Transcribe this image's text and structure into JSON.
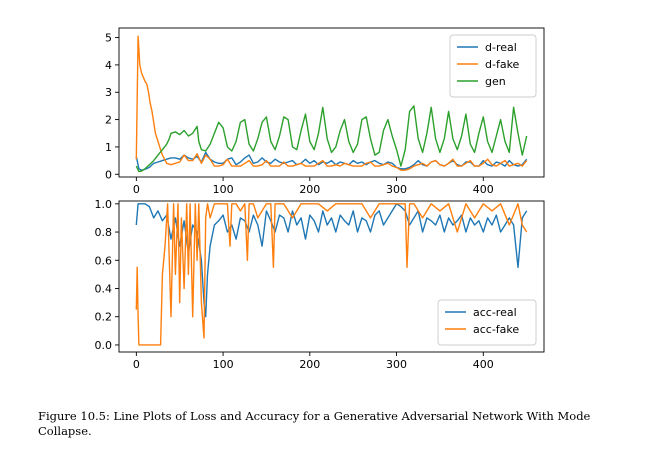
{
  "caption": "Figure 10.5: Line Plots of Loss and Accuracy for a Generative Adversarial Network With Mode Collapse.",
  "chart_data": [
    {
      "type": "line",
      "xlim": [
        -20,
        470
      ],
      "ylim": [
        -0.1,
        5.35
      ],
      "xticks": [
        0,
        100,
        200,
        300,
        400
      ],
      "xtick_labels": [
        "0",
        "100",
        "200",
        "300",
        "400"
      ],
      "yticks": [
        0,
        1,
        2,
        3,
        4,
        5
      ],
      "ytick_labels": [
        "0",
        "1",
        "2",
        "3",
        "4",
        "5"
      ],
      "legend_position": "upper-right",
      "grid": false,
      "series": [
        {
          "name": "d-real",
          "color": "#1f77b4",
          "x": [
            0,
            3,
            6,
            10,
            15,
            20,
            25,
            30,
            35,
            40,
            45,
            50,
            55,
            60,
            65,
            70,
            75,
            80,
            85,
            90,
            95,
            100,
            105,
            110,
            115,
            120,
            125,
            130,
            135,
            140,
            145,
            150,
            155,
            160,
            165,
            170,
            175,
            180,
            185,
            190,
            195,
            200,
            205,
            210,
            215,
            220,
            225,
            230,
            235,
            240,
            245,
            250,
            255,
            260,
            265,
            270,
            275,
            280,
            285,
            290,
            295,
            300,
            305,
            310,
            315,
            320,
            325,
            330,
            335,
            340,
            345,
            350,
            355,
            360,
            365,
            370,
            375,
            380,
            385,
            390,
            395,
            400,
            405,
            410,
            415,
            420,
            425,
            430,
            435,
            440,
            445,
            450
          ],
          "y": [
            0.65,
            0.2,
            0.15,
            0.18,
            0.25,
            0.4,
            0.45,
            0.5,
            0.55,
            0.6,
            0.6,
            0.55,
            0.7,
            0.6,
            0.55,
            0.65,
            0.45,
            0.8,
            0.55,
            0.45,
            0.4,
            0.4,
            0.55,
            0.6,
            0.35,
            0.45,
            0.6,
            0.7,
            0.4,
            0.45,
            0.6,
            0.45,
            0.4,
            0.55,
            0.45,
            0.4,
            0.45,
            0.5,
            0.35,
            0.4,
            0.55,
            0.4,
            0.5,
            0.35,
            0.45,
            0.4,
            0.5,
            0.35,
            0.45,
            0.4,
            0.35,
            0.5,
            0.4,
            0.45,
            0.35,
            0.45,
            0.5,
            0.4,
            0.35,
            0.45,
            0.4,
            0.25,
            0.2,
            0.2,
            0.25,
            0.35,
            0.5,
            0.35,
            0.3,
            0.45,
            0.5,
            0.35,
            0.3,
            0.4,
            0.5,
            0.35,
            0.3,
            0.45,
            0.45,
            0.3,
            0.3,
            0.5,
            0.35,
            0.3,
            0.45,
            0.4,
            0.3,
            0.5,
            0.35,
            0.3,
            0.35,
            0.55
          ]
        },
        {
          "name": "d-fake",
          "color": "#ff7f0e",
          "x": [
            0,
            2,
            4,
            6,
            8,
            10,
            12,
            14,
            16,
            18,
            20,
            22,
            25,
            28,
            30,
            35,
            40,
            45,
            50,
            55,
            60,
            65,
            70,
            75,
            80,
            85,
            90,
            95,
            100,
            105,
            110,
            115,
            120,
            125,
            130,
            135,
            140,
            145,
            150,
            155,
            160,
            165,
            170,
            175,
            180,
            185,
            190,
            195,
            200,
            205,
            210,
            215,
            220,
            225,
            230,
            235,
            240,
            245,
            250,
            255,
            260,
            265,
            270,
            275,
            280,
            285,
            290,
            295,
            300,
            305,
            310,
            315,
            320,
            325,
            330,
            335,
            340,
            345,
            350,
            355,
            360,
            365,
            370,
            375,
            380,
            385,
            390,
            395,
            400,
            405,
            410,
            415,
            420,
            425,
            430,
            435,
            440,
            445,
            450
          ],
          "y": [
            0.55,
            5.05,
            4.0,
            3.7,
            3.55,
            3.4,
            3.3,
            3.0,
            2.6,
            2.3,
            1.9,
            1.5,
            1.2,
            0.9,
            0.7,
            0.4,
            0.35,
            0.4,
            0.45,
            0.7,
            0.5,
            0.5,
            0.75,
            0.4,
            0.7,
            0.55,
            0.3,
            0.3,
            0.35,
            0.55,
            0.3,
            0.3,
            0.3,
            0.4,
            0.5,
            0.3,
            0.3,
            0.35,
            0.5,
            0.3,
            0.3,
            0.3,
            0.45,
            0.3,
            0.3,
            0.35,
            0.4,
            0.3,
            0.3,
            0.3,
            0.4,
            0.5,
            0.3,
            0.3,
            0.35,
            0.3,
            0.4,
            0.35,
            0.3,
            0.3,
            0.3,
            0.4,
            0.45,
            0.3,
            0.3,
            0.35,
            0.4,
            0.3,
            0.25,
            0.15,
            0.15,
            0.2,
            0.3,
            0.35,
            0.4,
            0.3,
            0.45,
            0.5,
            0.35,
            0.3,
            0.4,
            0.55,
            0.3,
            0.3,
            0.4,
            0.5,
            0.3,
            0.3,
            0.4,
            0.55,
            0.35,
            0.3,
            0.4,
            0.5,
            0.3,
            0.35,
            0.4,
            0.3,
            0.5
          ]
        },
        {
          "name": "gen",
          "color": "#2ca02c",
          "x": [
            0,
            3,
            6,
            10,
            15,
            20,
            25,
            30,
            35,
            38,
            40,
            45,
            50,
            55,
            60,
            65,
            70,
            72,
            75,
            80,
            85,
            90,
            95,
            100,
            105,
            110,
            115,
            120,
            125,
            130,
            135,
            140,
            145,
            150,
            155,
            160,
            165,
            170,
            175,
            180,
            185,
            190,
            195,
            200,
            205,
            210,
            215,
            220,
            225,
            230,
            235,
            240,
            245,
            250,
            255,
            260,
            265,
            270,
            275,
            280,
            285,
            290,
            295,
            300,
            305,
            310,
            315,
            320,
            325,
            330,
            335,
            340,
            345,
            350,
            355,
            360,
            365,
            370,
            375,
            380,
            385,
            390,
            395,
            400,
            405,
            410,
            415,
            420,
            425,
            430,
            435,
            440,
            445,
            450
          ],
          "y": [
            0.3,
            0.1,
            0.12,
            0.2,
            0.35,
            0.5,
            0.7,
            0.9,
            1.1,
            1.3,
            1.5,
            1.55,
            1.45,
            1.6,
            1.4,
            1.5,
            1.75,
            1.2,
            0.9,
            0.85,
            1.1,
            1.5,
            1.9,
            1.7,
            1.0,
            0.85,
            1.2,
            1.9,
            2.0,
            1.1,
            0.85,
            1.3,
            1.9,
            2.1,
            1.2,
            0.9,
            1.4,
            2.1,
            2.0,
            1.0,
            0.9,
            1.6,
            2.2,
            1.2,
            0.9,
            1.5,
            2.45,
            1.3,
            0.8,
            1.0,
            1.6,
            2.0,
            1.2,
            0.8,
            1.1,
            2.0,
            2.1,
            1.3,
            0.7,
            0.8,
            1.6,
            2.0,
            1.4,
            0.9,
            0.3,
            0.9,
            2.3,
            2.5,
            1.3,
            0.8,
            1.5,
            2.45,
            1.3,
            0.8,
            1.3,
            2.3,
            1.3,
            0.9,
            1.4,
            2.2,
            1.1,
            0.8,
            1.5,
            2.1,
            1.2,
            0.8,
            1.4,
            2.0,
            1.2,
            0.8,
            2.45,
            1.5,
            0.7,
            1.4
          ]
        }
      ]
    },
    {
      "type": "line",
      "xlim": [
        -20,
        470
      ],
      "ylim": [
        -0.05,
        1.02
      ],
      "xticks": [
        0,
        100,
        200,
        300,
        400
      ],
      "xtick_labels": [
        "0",
        "100",
        "200",
        "300",
        "400"
      ],
      "yticks": [
        0.0,
        0.2,
        0.4,
        0.6,
        0.8,
        1.0
      ],
      "ytick_labels": [
        "0.0",
        "0.2",
        "0.4",
        "0.6",
        "0.8",
        "1.0"
      ],
      "legend_position": "lower-right",
      "grid": false,
      "series": [
        {
          "name": "acc-real",
          "color": "#1f77b4",
          "x": [
            0,
            2,
            5,
            10,
            15,
            20,
            25,
            30,
            35,
            40,
            45,
            50,
            55,
            60,
            65,
            70,
            75,
            78,
            80,
            82,
            85,
            90,
            95,
            100,
            105,
            110,
            115,
            120,
            125,
            130,
            135,
            140,
            145,
            150,
            155,
            160,
            165,
            170,
            175,
            180,
            185,
            190,
            195,
            200,
            205,
            210,
            215,
            220,
            225,
            230,
            235,
            240,
            245,
            250,
            255,
            260,
            265,
            270,
            275,
            280,
            285,
            290,
            295,
            300,
            305,
            310,
            315,
            320,
            325,
            330,
            335,
            340,
            345,
            350,
            355,
            360,
            365,
            370,
            375,
            380,
            385,
            390,
            395,
            400,
            405,
            410,
            415,
            420,
            425,
            430,
            435,
            440,
            445,
            450
          ],
          "y": [
            0.85,
            1.0,
            1.0,
            1.0,
            0.98,
            0.9,
            0.95,
            0.88,
            0.92,
            0.75,
            0.9,
            0.7,
            0.88,
            0.65,
            0.85,
            0.8,
            0.6,
            0.3,
            0.2,
            0.5,
            0.7,
            0.85,
            0.88,
            0.92,
            0.8,
            0.85,
            0.75,
            0.9,
            0.88,
            0.8,
            0.92,
            0.85,
            0.7,
            0.95,
            0.88,
            0.8,
            0.92,
            0.9,
            0.8,
            0.95,
            0.85,
            0.9,
            0.75,
            0.92,
            0.88,
            0.8,
            0.95,
            0.85,
            0.9,
            0.8,
            0.92,
            0.88,
            0.85,
            0.95,
            0.8,
            0.9,
            0.88,
            0.8,
            0.92,
            0.95,
            0.85,
            0.9,
            0.95,
            1.0,
            0.98,
            0.95,
            0.85,
            0.9,
            0.95,
            0.8,
            0.9,
            0.88,
            0.85,
            0.92,
            0.8,
            0.9,
            0.85,
            0.88,
            0.92,
            0.8,
            0.9,
            0.85,
            0.88,
            0.8,
            0.9,
            0.85,
            0.92,
            0.8,
            0.85,
            0.9,
            0.85,
            0.55,
            0.9,
            0.95
          ]
        },
        {
          "name": "acc-fake",
          "color": "#ff7f0e",
          "x": [
            0,
            1,
            2,
            3,
            5,
            10,
            15,
            20,
            25,
            28,
            30,
            33,
            36,
            40,
            43,
            45,
            48,
            50,
            52,
            55,
            58,
            60,
            62,
            65,
            68,
            70,
            72,
            75,
            78,
            80,
            82,
            85,
            90,
            95,
            100,
            105,
            108,
            110,
            115,
            120,
            125,
            128,
            130,
            135,
            140,
            150,
            155,
            158,
            160,
            170,
            180,
            190,
            200,
            210,
            220,
            230,
            240,
            250,
            260,
            270,
            280,
            290,
            300,
            305,
            310,
            312,
            315,
            320,
            330,
            340,
            350,
            360,
            370,
            380,
            390,
            400,
            410,
            420,
            430,
            440,
            445,
            450
          ],
          "y": [
            0.25,
            0.55,
            0.2,
            0.0,
            0.0,
            0.0,
            0.0,
            0.0,
            0.0,
            0.0,
            0.5,
            0.7,
            1.0,
            0.2,
            1.0,
            0.5,
            1.0,
            0.3,
            0.9,
            0.4,
            1.0,
            0.5,
            1.0,
            0.2,
            1.0,
            0.6,
            1.0,
            0.3,
            0.05,
            0.9,
            1.0,
            0.9,
            1.0,
            1.0,
            1.0,
            1.0,
            0.7,
            1.0,
            1.0,
            0.95,
            1.0,
            0.6,
            1.0,
            1.0,
            0.9,
            1.0,
            1.0,
            0.55,
            1.0,
            1.0,
            0.9,
            1.0,
            1.0,
            1.0,
            0.95,
            1.0,
            1.0,
            1.0,
            1.0,
            0.9,
            1.0,
            1.0,
            1.0,
            1.0,
            1.0,
            0.55,
            1.0,
            1.0,
            0.9,
            1.0,
            0.95,
            1.0,
            0.8,
            1.0,
            0.9,
            1.0,
            0.95,
            1.0,
            0.85,
            1.0,
            0.85,
            0.8
          ]
        }
      ]
    }
  ]
}
